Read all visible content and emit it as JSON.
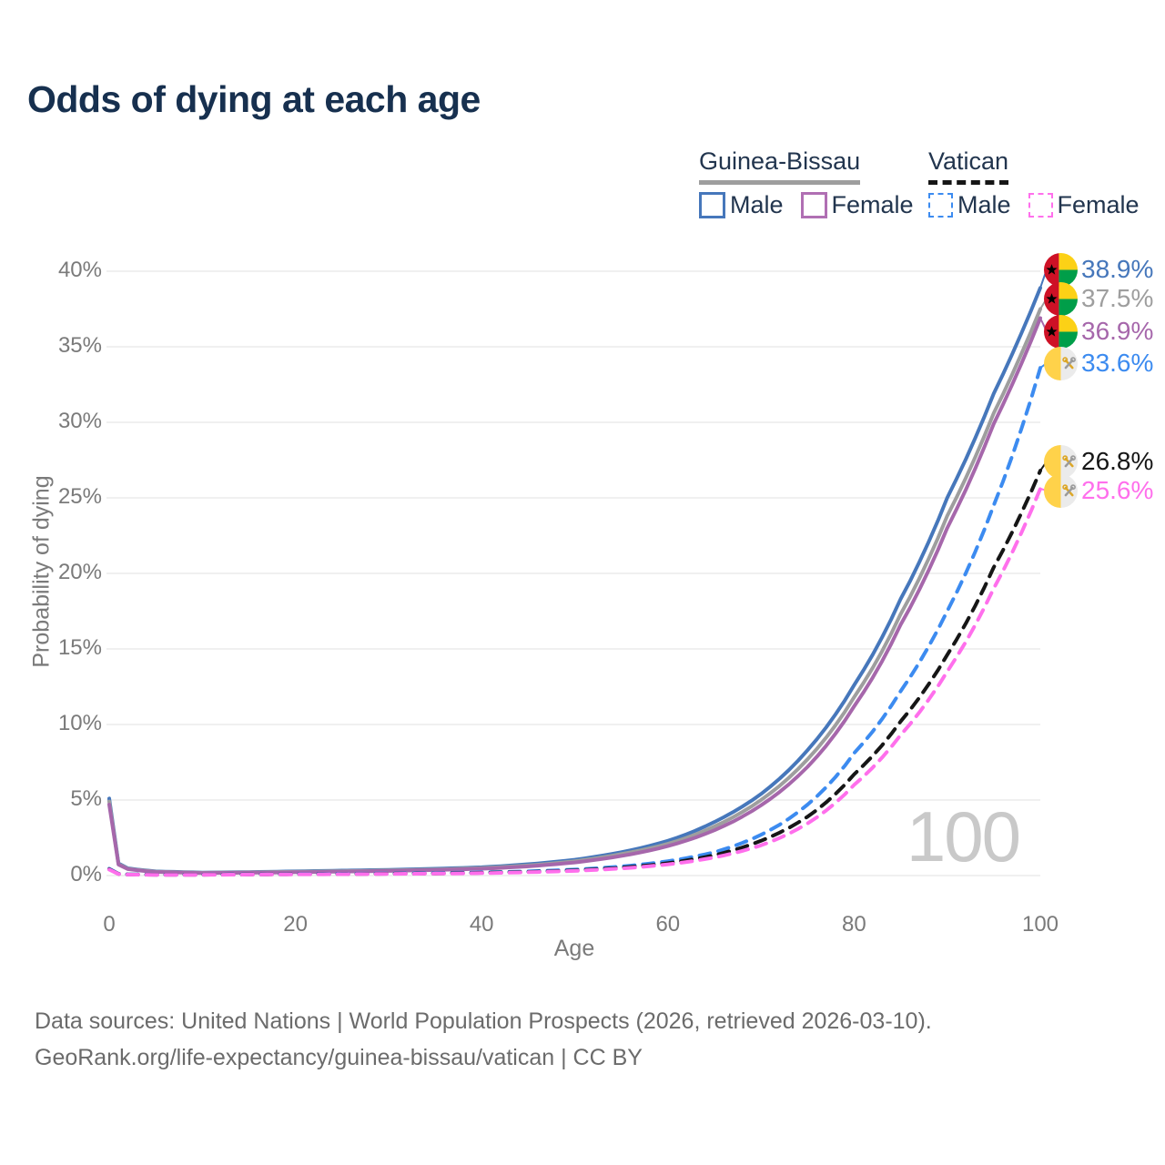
{
  "title": "Odds of dying at each age",
  "legend": {
    "groups": [
      {
        "name": "Guinea-Bissau",
        "line_style": "solid",
        "line_color": "#9e9e9e",
        "items": [
          {
            "label": "Male",
            "color": "#4677bb",
            "dashed": false
          },
          {
            "label": "Female",
            "color": "#b06fb3",
            "dashed": false
          }
        ]
      },
      {
        "name": "Vatican",
        "line_style": "dashed",
        "line_color": "#161616",
        "items": [
          {
            "label": "Male",
            "color": "#3c8bf0",
            "dashed": true
          },
          {
            "label": "Female",
            "color": "#ff6fec",
            "dashed": true
          }
        ]
      }
    ]
  },
  "axes": {
    "x": {
      "title": "Age",
      "ticks": [
        0,
        20,
        40,
        60,
        80,
        100
      ],
      "min": 0,
      "max": 100
    },
    "y": {
      "title": "Probability of dying",
      "tick_labels": [
        "0%",
        "5%",
        "10%",
        "15%",
        "20%",
        "25%",
        "30%",
        "35%",
        "40%"
      ],
      "min": 0,
      "max": 40,
      "unit": "%"
    }
  },
  "watermark": "100",
  "chart_data": {
    "type": "line",
    "x_label": "Age",
    "y_label": "Probability of dying",
    "x_range": [
      0,
      100
    ],
    "y_range_pct": [
      0,
      40
    ],
    "grid": true,
    "legend_position": "top-right",
    "ages": [
      0,
      1,
      2,
      5,
      10,
      15,
      20,
      25,
      30,
      35,
      40,
      45,
      50,
      55,
      60,
      65,
      70,
      75,
      80,
      85,
      90,
      95,
      100
    ],
    "series": [
      {
        "name": "Guinea-Bissau Male",
        "country": "guinea-bissau",
        "sex": "male",
        "color": "#4677bb",
        "dashed": false,
        "end_label": "38.9%",
        "end_value_pct": 38.9,
        "values": [
          5.1,
          0.8,
          0.48,
          0.28,
          0.2,
          0.23,
          0.28,
          0.33,
          0.38,
          0.45,
          0.55,
          0.75,
          1.05,
          1.55,
          2.3,
          3.55,
          5.4,
          8.3,
          12.6,
          18.3,
          25.0,
          31.9,
          38.9
        ]
      },
      {
        "name": "Guinea-Bissau Both sexes",
        "country": "guinea-bissau",
        "sex": "both",
        "color": "#9e9e9e",
        "dashed": false,
        "end_label": "37.5%",
        "end_value_pct": 37.5,
        "values": [
          4.9,
          0.76,
          0.45,
          0.26,
          0.18,
          0.21,
          0.25,
          0.29,
          0.34,
          0.4,
          0.5,
          0.67,
          0.95,
          1.42,
          2.1,
          3.25,
          5.0,
          7.7,
          11.8,
          17.3,
          23.8,
          30.6,
          37.5
        ]
      },
      {
        "name": "Guinea-Bissau Female",
        "country": "guinea-bissau",
        "sex": "female",
        "color": "#a667ab",
        "dashed": false,
        "end_label": "36.9%",
        "end_value_pct": 36.9,
        "values": [
          4.7,
          0.72,
          0.43,
          0.24,
          0.17,
          0.19,
          0.22,
          0.26,
          0.31,
          0.37,
          0.45,
          0.61,
          0.87,
          1.3,
          1.95,
          3.0,
          4.65,
          7.2,
          11.2,
          16.6,
          23.0,
          29.9,
          36.9
        ]
      },
      {
        "name": "Vatican Male",
        "country": "vatican",
        "sex": "male",
        "color": "#3c8bf0",
        "dashed": true,
        "end_label": "33.6%",
        "end_value_pct": 33.6,
        "values": [
          0.45,
          0.12,
          0.08,
          0.06,
          0.06,
          0.08,
          0.1,
          0.12,
          0.14,
          0.17,
          0.21,
          0.28,
          0.4,
          0.6,
          0.95,
          1.55,
          2.7,
          4.7,
          8.1,
          12.2,
          17.5,
          24.5,
          33.6
        ]
      },
      {
        "name": "Vatican Both sexes",
        "country": "vatican",
        "sex": "both",
        "color": "#161616",
        "dashed": true,
        "end_label": "26.8%",
        "end_value_pct": 26.8,
        "values": [
          0.42,
          0.11,
          0.07,
          0.055,
          0.055,
          0.07,
          0.09,
          0.1,
          0.12,
          0.14,
          0.18,
          0.24,
          0.34,
          0.52,
          0.82,
          1.35,
          2.3,
          3.9,
          6.7,
          10.2,
          14.6,
          20.4,
          26.8
        ]
      },
      {
        "name": "Vatican Female",
        "country": "vatican",
        "sex": "female",
        "color": "#ff6fec",
        "dashed": true,
        "end_label": "25.6%",
        "end_value_pct": 25.6,
        "values": [
          0.4,
          0.1,
          0.065,
          0.05,
          0.05,
          0.065,
          0.08,
          0.09,
          0.11,
          0.13,
          0.16,
          0.22,
          0.31,
          0.47,
          0.74,
          1.2,
          2.0,
          3.45,
          6.0,
          9.3,
          13.5,
          19.0,
          25.6
        ]
      }
    ],
    "label_y_hints": [
      296,
      328,
      364,
      399,
      507,
      539
    ],
    "flag_colors": {
      "guinea-bissau": {
        "red": "#CE1126",
        "yellow": "#FCD116",
        "green": "#009E49",
        "star": "#000000"
      },
      "vatican": {
        "yellow": "#FFD24A",
        "white": "#ebebeb",
        "key_gold": "#dca728",
        "key_silver": "#9b9b9b"
      }
    }
  },
  "footer": {
    "line1": "Data sources: United Nations | World Population Prospects (2026, retrieved 2026-03-10).",
    "line2": "GeoRank.org/life-expectancy/guinea-bissau/vatican | CC BY"
  }
}
